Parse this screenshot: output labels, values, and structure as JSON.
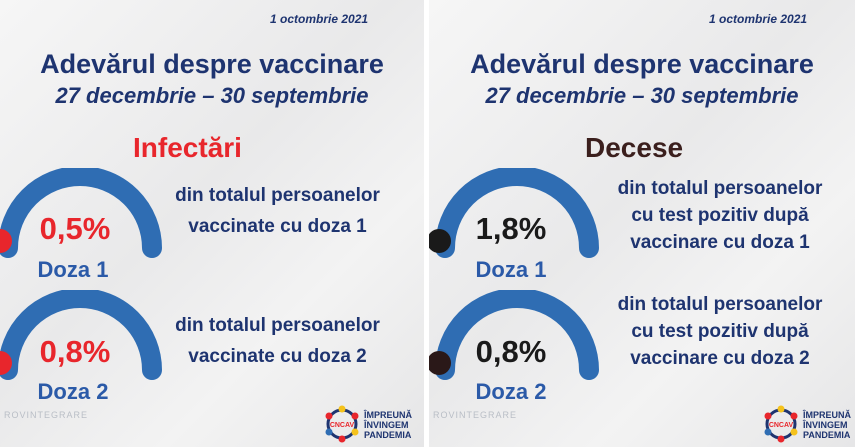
{
  "left": {
    "date": "1 octombrie 2021",
    "title": "Adevărul despre vaccinare",
    "subtitle": "27 decembrie – 30 septembrie",
    "heading": "Infectări",
    "heading_color": "#e8262c",
    "dose1": {
      "percent": "0,5%",
      "label": "Doza 1",
      "desc_lines": [
        "din totalul persoanelor",
        "vaccinate cu doza 1"
      ]
    },
    "dose2": {
      "percent": "0,8%",
      "label": "Doza 2",
      "desc_lines": [
        "din totalul persoanelor",
        "vaccinate cu doza 2"
      ]
    },
    "marker_color": "#e8262c"
  },
  "right": {
    "date": "1 octombrie 2021",
    "title": "Adevărul despre vaccinare",
    "subtitle": "27 decembrie – 30 septembrie",
    "heading": "Decese",
    "heading_color": "#3b1f1d",
    "dose1": {
      "percent": "1,8%",
      "label": "Doza 1",
      "desc_lines": [
        "din totalul persoanelor",
        "cu test pozitiv după",
        "vaccinare cu doza 1"
      ]
    },
    "dose2": {
      "percent": "0,8%",
      "label": "Doza 2",
      "desc_lines": [
        "din totalul persoanelor",
        "cu test pozitiv după",
        "vaccinare cu doza 2"
      ]
    },
    "marker_color": "#1a1a1a"
  },
  "logo": {
    "lines": [
      "ÎMPREUNĂ",
      "ÎNVINGEM",
      "PANDEMIA"
    ],
    "seal_text": "CNCAV"
  },
  "watermark": "ROVINTEGRARE",
  "colors": {
    "navy": "#1e3470",
    "gauge_blue": "#2f6db3",
    "red": "#e8262c",
    "dark": "#1a1a1a"
  }
}
